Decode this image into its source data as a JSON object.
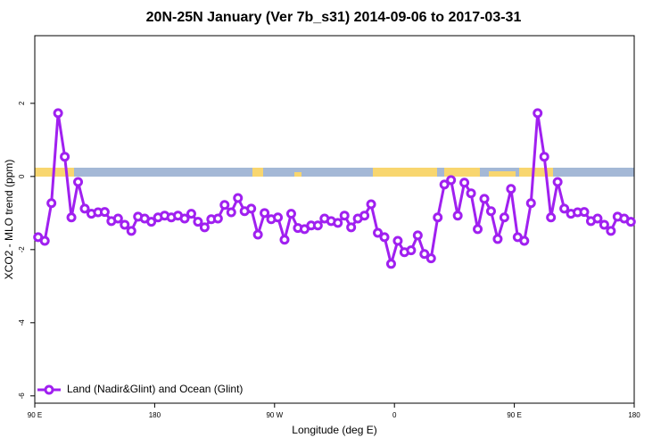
{
  "chart_data": {
    "type": "line",
    "title": "20N-25N January (Ver 7b_s31)   2014-09-06 to 2017-03-31",
    "x_label": "Longitude (deg E)",
    "y_label": "XCO2 - MLO trend (ppm)",
    "xlim": [
      90,
      540
    ],
    "ylim": [
      -6.2,
      3.85
    ],
    "xticks": [
      {
        "value": 90,
        "label": "90 E"
      },
      180,
      {
        "value": 270,
        "label": "90 W"
      },
      {
        "value": 360,
        "label": "0"
      },
      {
        "value": 450,
        "label": "90 E"
      },
      {
        "value": 540,
        "label": "180"
      }
    ],
    "yticks": [
      -6,
      -4,
      -2,
      0,
      2
    ],
    "legend": "bottom-left",
    "x": [
      92.5,
      97.5,
      102.5,
      107.5,
      112.5,
      117.5,
      122.5,
      127.5,
      132.5,
      137.5,
      142.5,
      147.5,
      152.5,
      157.5,
      162.5,
      167.5,
      172.5,
      177.5,
      182.5,
      187.5,
      192.5,
      197.5,
      202.5,
      207.5,
      212.5,
      217.5,
      222.5,
      227.5,
      232.5,
      237.5,
      242.5,
      247.5,
      252.5,
      257.5,
      262.5,
      267.5,
      272.5,
      277.5,
      282.5,
      287.5,
      292.5,
      297.5,
      302.5,
      307.5,
      312.5,
      317.5,
      322.5,
      327.5,
      332.5,
      337.5,
      342.5,
      347.5,
      352.5,
      357.5,
      362.5,
      367.5,
      372.5,
      377.5,
      382.5,
      387.5,
      392.5,
      397.5,
      402.5,
      407.5,
      412.5,
      417.5,
      422.5,
      427.5,
      432.5,
      437.5,
      442.5,
      447.5,
      452.5,
      457.5,
      462.5,
      467.5,
      472.5,
      477.5,
      482.5,
      487.5,
      492.5,
      497.5,
      502.5,
      507.5,
      512.5,
      517.5,
      522.5,
      527.5,
      532.5,
      537.5
    ],
    "series": [
      {
        "name": "Land (Nadir&Glint) and Ocean (Glint)",
        "color": "#a020f0",
        "values": [
          -1.66,
          -1.76,
          -0.73,
          1.73,
          0.54,
          -1.12,
          -0.15,
          -0.88,
          -1.02,
          -0.98,
          -0.97,
          -1.22,
          -1.15,
          -1.32,
          -1.49,
          -1.1,
          -1.15,
          -1.24,
          -1.12,
          -1.07,
          -1.12,
          -1.07,
          -1.15,
          -1.02,
          -1.24,
          -1.39,
          -1.17,
          -1.15,
          -0.78,
          -0.98,
          -0.59,
          -0.95,
          -0.88,
          -1.59,
          -1.0,
          -1.17,
          -1.12,
          -1.73,
          -1.02,
          -1.41,
          -1.44,
          -1.34,
          -1.34,
          -1.15,
          -1.22,
          -1.27,
          -1.07,
          -1.39,
          -1.15,
          -1.07,
          -0.76,
          -1.54,
          -1.66,
          -2.39,
          -1.76,
          -2.07,
          -2.02,
          -1.61,
          -2.12,
          -2.24,
          -1.12,
          -0.22,
          -0.1,
          -1.07,
          -0.17,
          -0.46,
          -1.44,
          -0.61,
          -0.95,
          -1.71,
          -1.12,
          -0.34,
          -1.66,
          -1.76,
          -0.73,
          1.73,
          0.54,
          -1.12,
          -0.15,
          -0.88,
          -1.02,
          -0.98,
          -0.97,
          -1.22,
          -1.15,
          -1.32,
          -1.49,
          -1.1,
          -1.15,
          -1.24
        ]
      }
    ]
  }
}
